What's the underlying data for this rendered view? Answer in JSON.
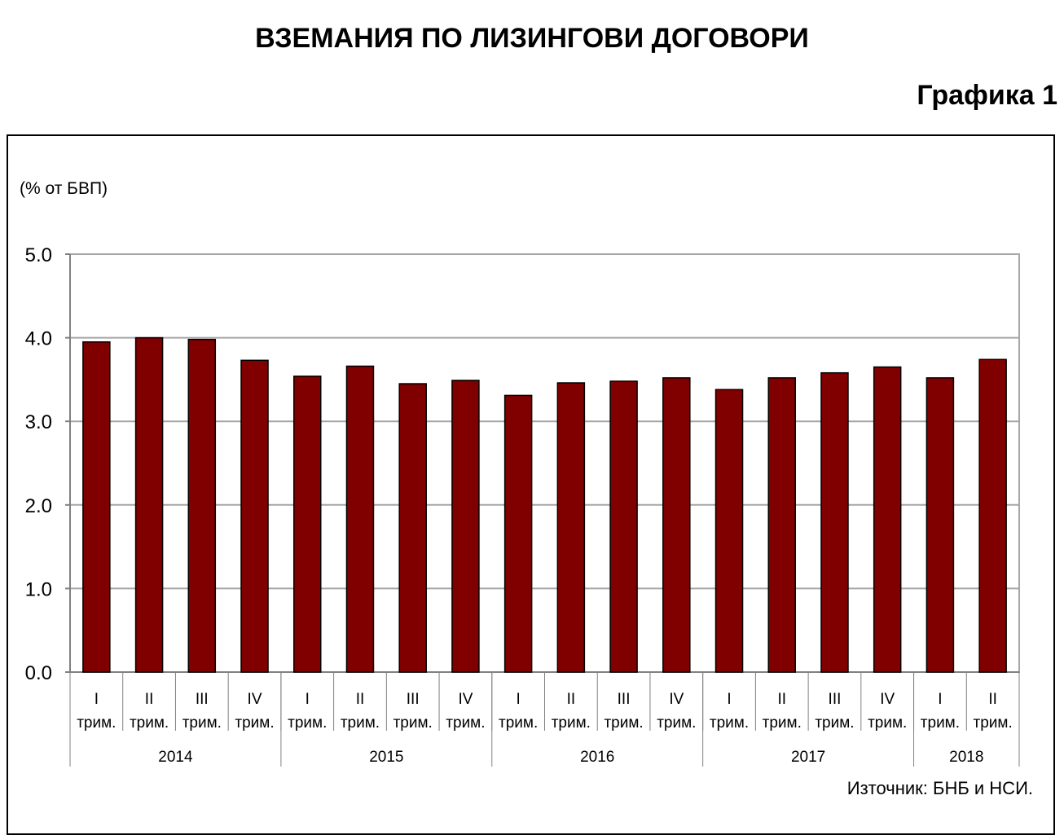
{
  "header": {
    "title": "ВЗЕМАНИЯ ПО ЛИЗИНГОВИ ДОГОВОРИ",
    "figure_label": "Графика 1"
  },
  "chart_data": {
    "type": "bar",
    "title": "ВЗЕМАНИЯ ПО ЛИЗИНГОВИ ДОГОВОРИ",
    "ylabel": "(% от БВП)",
    "xlabel": "",
    "ylim": [
      0,
      5
    ],
    "yticks": [
      "0.0",
      "1.0",
      "2.0",
      "3.0",
      "4.0",
      "5.0"
    ],
    "grid": true,
    "categories": [
      {
        "q": "I",
        "t": "трим."
      },
      {
        "q": "II",
        "t": "трим."
      },
      {
        "q": "III",
        "t": "трим."
      },
      {
        "q": "IV",
        "t": "трим."
      },
      {
        "q": "I",
        "t": "трим."
      },
      {
        "q": "II",
        "t": "трим."
      },
      {
        "q": "III",
        "t": "трим."
      },
      {
        "q": "IV",
        "t": "трим."
      },
      {
        "q": "I",
        "t": "трим."
      },
      {
        "q": "II",
        "t": "трим."
      },
      {
        "q": "III",
        "t": "трим."
      },
      {
        "q": "IV",
        "t": "трим."
      },
      {
        "q": "I",
        "t": "трим."
      },
      {
        "q": "II",
        "t": "трим."
      },
      {
        "q": "III",
        "t": "трим."
      },
      {
        "q": "IV",
        "t": "трим."
      },
      {
        "q": "I",
        "t": "трим."
      },
      {
        "q": "II",
        "t": "трим."
      }
    ],
    "years": [
      {
        "label": "2014",
        "count": 4
      },
      {
        "label": "2015",
        "count": 4
      },
      {
        "label": "2016",
        "count": 4
      },
      {
        "label": "2017",
        "count": 4
      },
      {
        "label": "2018",
        "count": 2
      }
    ],
    "values": [
      3.95,
      4.0,
      3.98,
      3.73,
      3.54,
      3.66,
      3.45,
      3.49,
      3.31,
      3.46,
      3.48,
      3.52,
      3.38,
      3.52,
      3.58,
      3.65,
      3.52,
      3.74
    ],
    "bar_color": "#800000",
    "grid_color": "#a6a6a6",
    "source": "Източник: БНБ и НСИ."
  }
}
